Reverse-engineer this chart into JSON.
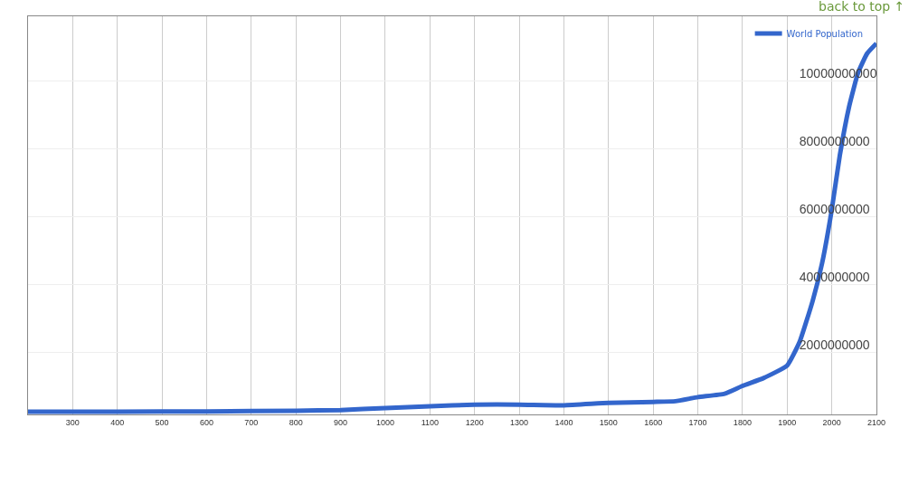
{
  "chart_data": {
    "type": "line",
    "x": [
      200,
      400,
      600,
      800,
      900,
      1000,
      1100,
      1200,
      1300,
      1400,
      1500,
      1600,
      1650,
      1700,
      1760,
      1800,
      1847,
      1900,
      1928,
      1957,
      1978,
      2000,
      2018,
      2039,
      2059,
      2079,
      2100
    ],
    "series": [
      {
        "name": "World Population",
        "color": "#3366cc",
        "values": [
          240000000,
          240000000,
          250000000,
          270000000,
          290000000,
          350000000,
          400000000,
          450000000,
          450000000,
          430000000,
          500000000,
          530000000,
          550000000,
          670000000,
          770000000,
          1000000000,
          1230000000,
          1600000000,
          2300000000,
          3500000000,
          4600000000,
          6200000000,
          7800000000,
          9250000000,
          10240000000,
          10800000000,
          11100000000
        ]
      }
    ],
    "xlim": [
      200,
      2100
    ],
    "xticks": [
      300,
      400,
      500,
      600,
      700,
      800,
      900,
      1000,
      1100,
      1200,
      1300,
      1400,
      1500,
      1600,
      1700,
      1800,
      1900,
      2000,
      2100
    ],
    "ylim": [
      160000000,
      11900000000
    ],
    "yticks": [
      2000000000,
      4000000000,
      6000000000,
      8000000000,
      10000000000
    ],
    "grid": true,
    "legend": "top right",
    "marker": "none",
    "line_style": "solid",
    "annotations": [
      "back to top ↑"
    ]
  }
}
